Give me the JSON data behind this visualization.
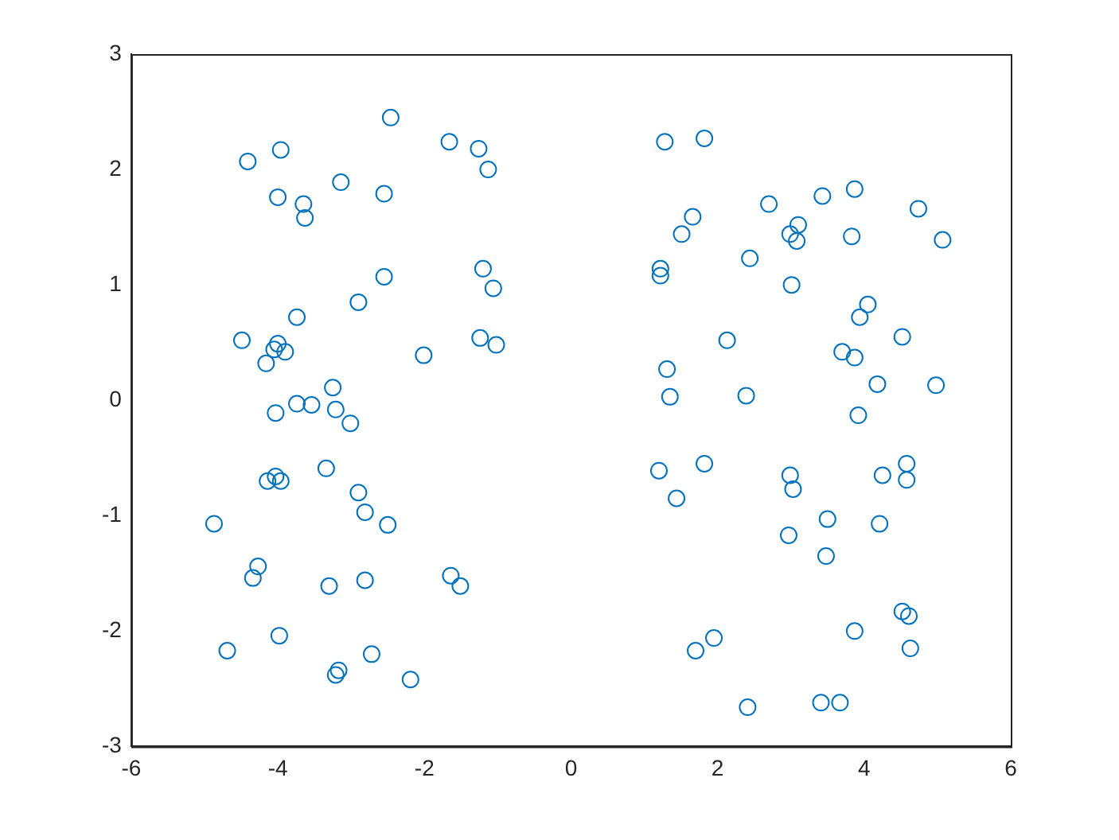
{
  "chart_data": {
    "type": "scatter",
    "marker": "circle",
    "color": "#0072bd",
    "x": [
      -4.41,
      -3.96,
      -2.46,
      -1.66,
      -1.26,
      -1.13,
      -4.0,
      -3.65,
      -3.63,
      -3.14,
      -2.55,
      -2.55,
      -1.2,
      -1.06,
      -2.9,
      -3.74,
      -4.49,
      -4.0,
      -4.05,
      -3.9,
      -4.16,
      -2.01,
      -1.24,
      -1.02,
      -3.25,
      -3.74,
      -3.54,
      -3.21,
      -4.03,
      -3.01,
      -3.34,
      -4.03,
      -4.14,
      -3.96,
      -2.9,
      -2.81,
      -2.5,
      -4.87,
      -4.27,
      -4.34,
      -3.3,
      -2.81,
      -1.64,
      -1.51,
      -3.98,
      -4.69,
      -2.72,
      -3.17,
      -3.21,
      -2.19,
      1.28,
      1.82,
      2.7,
      3.43,
      3.87,
      4.74,
      1.66,
      1.51,
      2.99,
      3.1,
      3.08,
      3.83,
      5.07,
      2.44,
      1.22,
      1.22,
      3.01,
      4.05,
      3.94,
      2.13,
      4.52,
      3.7,
      3.87,
      1.31,
      4.18,
      4.98,
      1.35,
      2.39,
      3.92,
      1.2,
      1.82,
      2.99,
      4.25,
      4.58,
      4.58,
      3.03,
      1.44,
      3.5,
      4.21,
      2.97,
      3.48,
      4.52,
      4.61,
      3.87,
      1.95,
      1.7,
      4.63,
      2.41,
      3.41,
      3.67
    ],
    "values": [
      2.07,
      2.17,
      2.45,
      2.24,
      2.18,
      2.0,
      1.76,
      1.7,
      1.58,
      1.89,
      1.79,
      1.07,
      1.14,
      0.97,
      0.85,
      0.72,
      0.52,
      0.49,
      0.44,
      0.42,
      0.32,
      0.39,
      0.54,
      0.48,
      0.11,
      -0.03,
      -0.04,
      -0.08,
      -0.11,
      -0.2,
      -0.59,
      -0.66,
      -0.7,
      -0.7,
      -0.8,
      -0.97,
      -1.08,
      -1.07,
      -1.44,
      -1.54,
      -1.61,
      -1.56,
      -1.52,
      -1.61,
      -2.04,
      -2.17,
      -2.2,
      -2.34,
      -2.38,
      -2.42,
      2.24,
      2.27,
      1.7,
      1.77,
      1.83,
      1.66,
      1.59,
      1.44,
      1.44,
      1.52,
      1.38,
      1.42,
      1.39,
      1.23,
      1.14,
      1.08,
      1.0,
      0.83,
      0.72,
      0.52,
      0.55,
      0.42,
      0.37,
      0.27,
      0.14,
      0.13,
      0.03,
      0.04,
      -0.13,
      -0.61,
      -0.55,
      -0.65,
      -0.65,
      -0.55,
      -0.69,
      -0.77,
      -0.85,
      -1.03,
      -1.07,
      -1.17,
      -1.35,
      -1.83,
      -1.87,
      -2.0,
      -2.06,
      -2.17,
      -2.15,
      -2.66,
      -2.62,
      -2.62
    ],
    "xlim": [
      -6,
      6
    ],
    "ylim": [
      -3,
      3
    ],
    "xticks": [
      -6,
      -4,
      -2,
      0,
      2,
      4,
      6
    ],
    "yticks": [
      -3,
      -2,
      -1,
      0,
      1,
      2,
      3
    ]
  }
}
